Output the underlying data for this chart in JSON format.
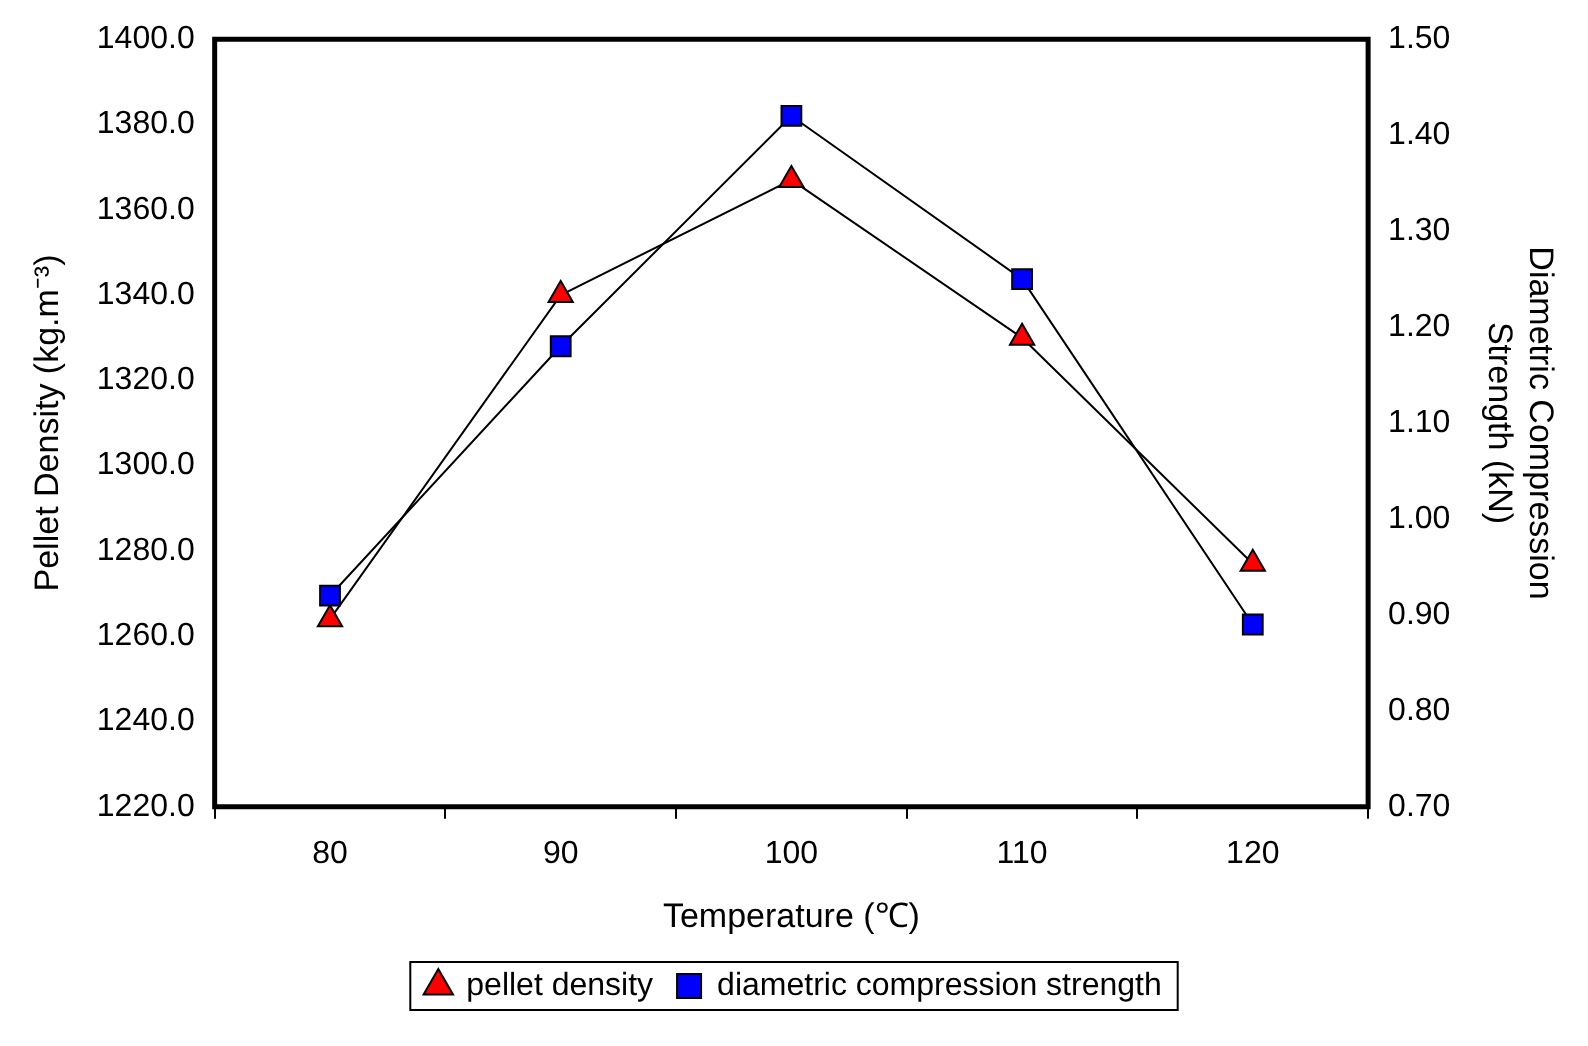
{
  "chart_data": {
    "type": "line",
    "xlabel": "Temperature (℃)",
    "ylabel": "Pellet Density (kg.m⁻³)",
    "y2label": "Diametric Compression\nStrength (kN)",
    "categories": [
      "80",
      "90",
      "100",
      "110",
      "120"
    ],
    "series": [
      {
        "name": "pellet density",
        "color": "#ff0000",
        "marker": "triangle",
        "values": [
          1264,
          1340,
          1367,
          1330,
          1277
        ]
      },
      {
        "name": "diametric compression strength",
        "color": "#0000ff",
        "marker": "square",
        "axis": "y2",
        "values": [
          0.92,
          1.18,
          1.42,
          1.25,
          0.89
        ]
      }
    ],
    "ylim": [
      1220,
      1400
    ],
    "yticks": [
      {
        "value": 1220,
        "label": "1220.0"
      },
      {
        "value": 1240,
        "label": "1240.0"
      },
      {
        "value": 1260,
        "label": "1260.0"
      },
      {
        "value": 1280,
        "label": "1280.0"
      },
      {
        "value": 1300,
        "label": "1300.0"
      },
      {
        "value": 1320,
        "label": "1320.0"
      },
      {
        "value": 1340,
        "label": "1340.0"
      },
      {
        "value": 1360,
        "label": "1360.0"
      },
      {
        "value": 1380,
        "label": "1380.0"
      },
      {
        "value": 1400,
        "label": "1400.0"
      }
    ],
    "y2lim": [
      0.7,
      1.5
    ],
    "y2ticks": [
      {
        "value": 0.7,
        "label": "0.70"
      },
      {
        "value": 0.8,
        "label": "0.80"
      },
      {
        "value": 0.9,
        "label": "0.90"
      },
      {
        "value": 1.0,
        "label": "1.00"
      },
      {
        "value": 1.1,
        "label": "1.10"
      },
      {
        "value": 1.2,
        "label": "1.20"
      },
      {
        "value": 1.3,
        "label": "1.30"
      },
      {
        "value": 1.4,
        "label": "1.40"
      },
      {
        "value": 1.5,
        "label": "1.50"
      }
    ],
    "grid": false,
    "legend": "bottom",
    "line_style": "solid"
  }
}
